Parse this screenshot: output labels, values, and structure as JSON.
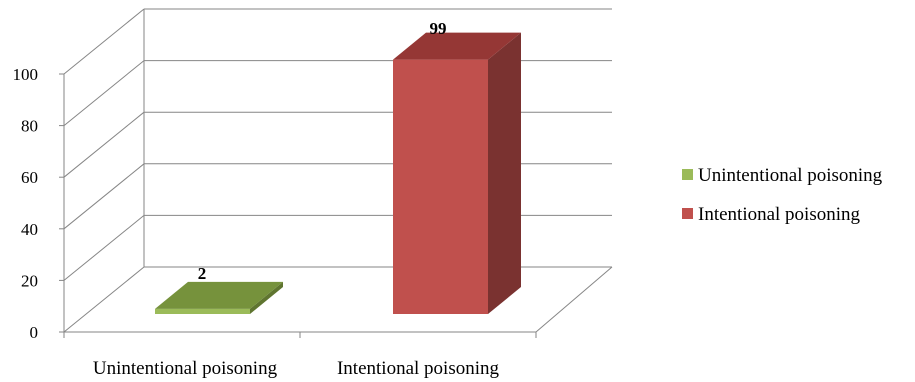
{
  "chart_data": {
    "type": "bar",
    "categories": [
      "Unintentional poisoning",
      "Intentional poisoning"
    ],
    "values": [
      2,
      99
    ],
    "data_labels": [
      "2",
      "99"
    ],
    "y_ticks": [
      "0",
      "20",
      "40",
      "60",
      "80",
      "100"
    ],
    "ylim": [
      0,
      100
    ],
    "grid": true,
    "three_d": true,
    "legend_position": "right",
    "legend": [
      {
        "name": "Unintentional poisoning",
        "color": "#9bbb59"
      },
      {
        "name": "Intentional poisoning",
        "color": "#c0504d"
      }
    ],
    "colors": {
      "unintentional_front": "#9bbb59",
      "unintentional_top": "#76923c",
      "unintentional_side": "#5f7530",
      "intentional_front": "#c0504d",
      "intentional_top": "#953735",
      "intentional_side": "#7a3230",
      "grid": "#868686"
    }
  }
}
